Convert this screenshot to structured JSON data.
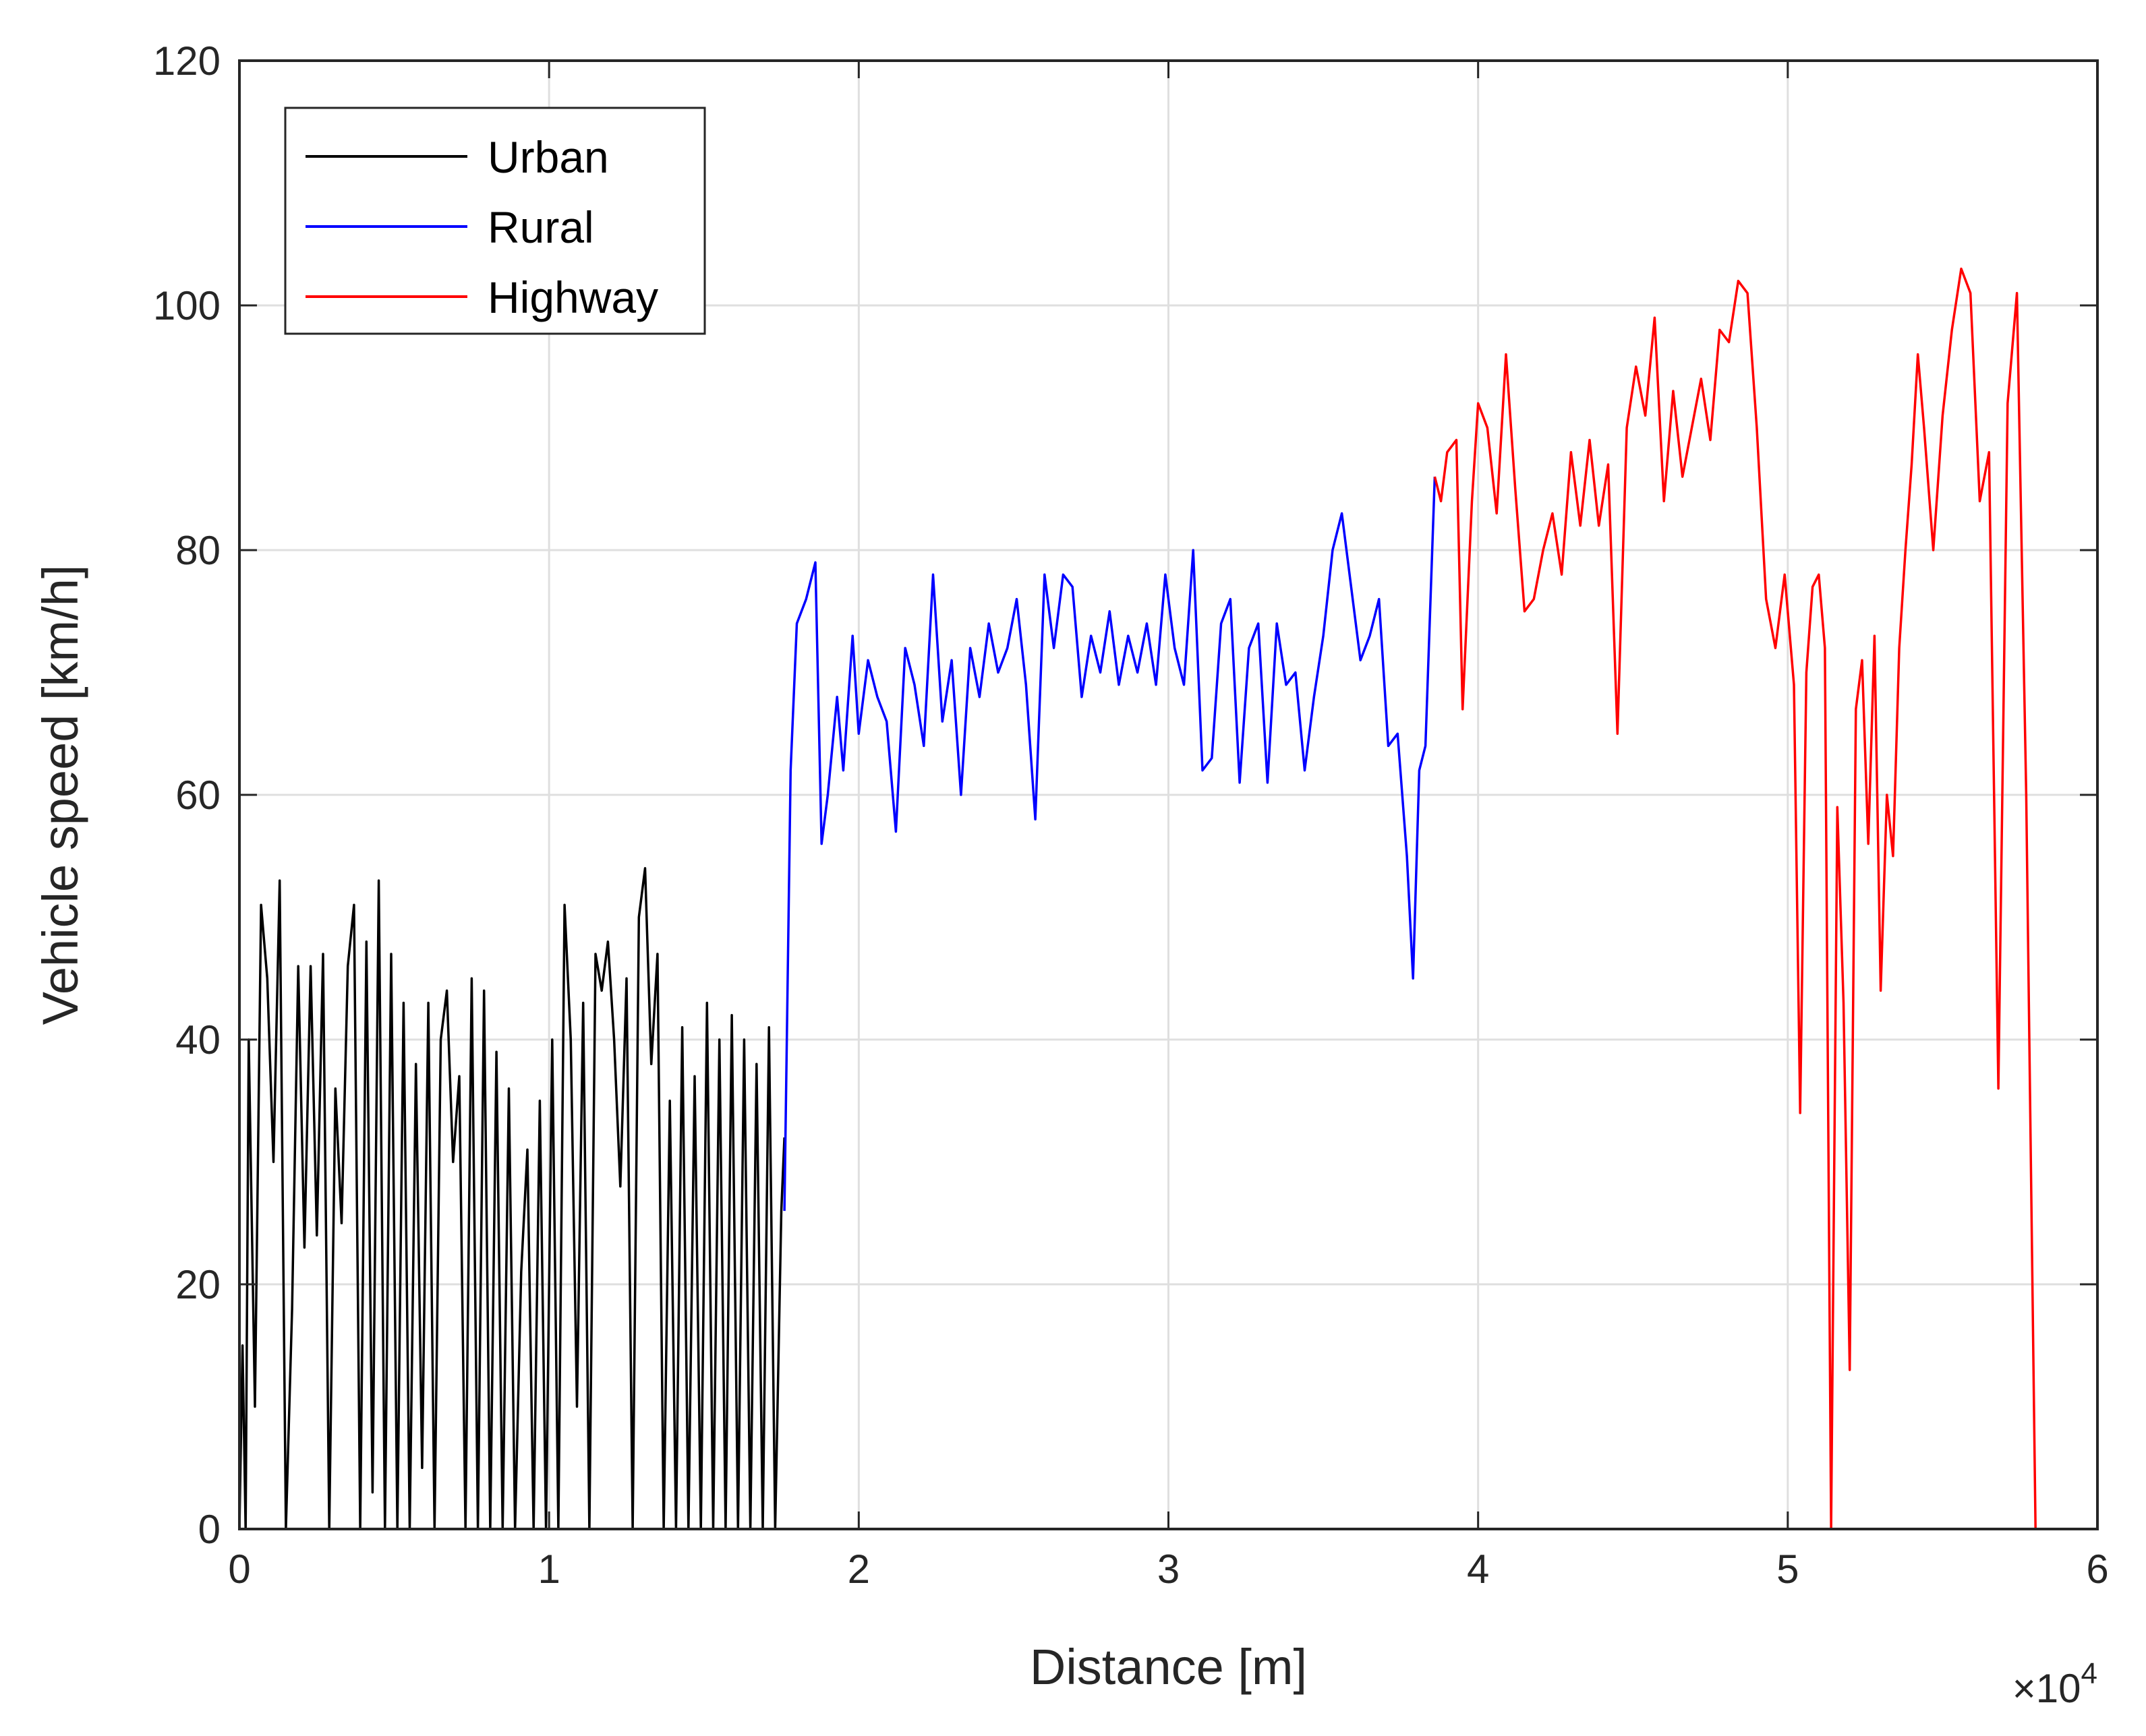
{
  "chart_data": {
    "type": "line",
    "title": "",
    "xlabel": "Distance [m]",
    "ylabel": "Vehicle speed [km/h]",
    "x_multiplier": {
      "prefix": "×10",
      "exponent": "4"
    },
    "xlim": [
      0,
      6
    ],
    "ylim": [
      0,
      120
    ],
    "x_ticks": [
      "0",
      "1",
      "2",
      "3",
      "4",
      "5",
      "6"
    ],
    "y_ticks": [
      "0",
      "20",
      "40",
      "60",
      "80",
      "100",
      "120"
    ],
    "grid": true,
    "legend": {
      "position": "top-left"
    },
    "series": [
      {
        "name": "Urban",
        "color": "#000000",
        "x": [
          0.0,
          0.01,
          0.02,
          0.03,
          0.05,
          0.07,
          0.09,
          0.11,
          0.13,
          0.15,
          0.17,
          0.19,
          0.21,
          0.23,
          0.25,
          0.27,
          0.29,
          0.31,
          0.33,
          0.35,
          0.37,
          0.39,
          0.41,
          0.43,
          0.45,
          0.47,
          0.49,
          0.51,
          0.53,
          0.55,
          0.57,
          0.59,
          0.61,
          0.63,
          0.65,
          0.67,
          0.69,
          0.71,
          0.73,
          0.75,
          0.77,
          0.79,
          0.81,
          0.83,
          0.85,
          0.87,
          0.89,
          0.91,
          0.93,
          0.95,
          0.97,
          0.99,
          1.01,
          1.03,
          1.05,
          1.07,
          1.09,
          1.11,
          1.13,
          1.15,
          1.17,
          1.19,
          1.21,
          1.23,
          1.25,
          1.27,
          1.29,
          1.31,
          1.33,
          1.35,
          1.37,
          1.39,
          1.41,
          1.43,
          1.45,
          1.47,
          1.49,
          1.51,
          1.53,
          1.55,
          1.57,
          1.59,
          1.61,
          1.63,
          1.65,
          1.67,
          1.69,
          1.71,
          1.73,
          1.75,
          1.76
        ],
        "y": [
          0,
          15,
          0,
          40,
          10,
          51,
          45,
          30,
          53,
          0,
          18,
          46,
          23,
          46,
          24,
          47,
          0,
          36,
          25,
          46,
          51,
          0,
          48,
          3,
          53,
          0,
          47,
          0,
          43,
          0,
          38,
          5,
          43,
          0,
          40,
          44,
          30,
          37,
          0,
          45,
          0,
          44,
          0,
          39,
          0,
          36,
          0,
          21,
          31,
          0,
          35,
          0,
          40,
          0,
          51,
          40,
          10,
          43,
          0,
          47,
          44,
          48,
          40,
          28,
          45,
          0,
          50,
          54,
          38,
          47,
          0,
          35,
          0,
          41,
          0,
          37,
          0,
          43,
          0,
          40,
          0,
          42,
          0,
          40,
          0,
          38,
          0,
          41,
          0,
          26,
          32
        ]
      },
      {
        "name": "Rural",
        "color": "#0000ff",
        "x": [
          1.76,
          1.78,
          1.8,
          1.83,
          1.86,
          1.88,
          1.9,
          1.93,
          1.95,
          1.98,
          2.0,
          2.03,
          2.06,
          2.09,
          2.12,
          2.15,
          2.18,
          2.21,
          2.24,
          2.27,
          2.3,
          2.33,
          2.36,
          2.39,
          2.42,
          2.45,
          2.48,
          2.51,
          2.54,
          2.57,
          2.6,
          2.63,
          2.66,
          2.69,
          2.72,
          2.75,
          2.78,
          2.81,
          2.84,
          2.87,
          2.9,
          2.93,
          2.96,
          2.99,
          3.02,
          3.05,
          3.08,
          3.11,
          3.14,
          3.17,
          3.2,
          3.23,
          3.26,
          3.29,
          3.32,
          3.35,
          3.38,
          3.41,
          3.44,
          3.47,
          3.5,
          3.53,
          3.56,
          3.59,
          3.62,
          3.65,
          3.68,
          3.71,
          3.74,
          3.77,
          3.79,
          3.81,
          3.83,
          3.86
        ],
        "y": [
          26,
          62,
          74,
          76,
          79,
          56,
          60,
          68,
          62,
          73,
          65,
          71,
          68,
          66,
          57,
          72,
          69,
          64,
          78,
          66,
          71,
          60,
          72,
          68,
          74,
          70,
          72,
          76,
          69,
          58,
          78,
          72,
          78,
          77,
          68,
          73,
          70,
          75,
          69,
          73,
          70,
          74,
          69,
          78,
          72,
          69,
          80,
          62,
          63,
          74,
          76,
          61,
          72,
          74,
          61,
          74,
          69,
          70,
          62,
          68,
          73,
          80,
          83,
          77,
          71,
          73,
          76,
          64,
          65,
          55,
          45,
          62,
          64,
          86
        ]
      },
      {
        "name": "Highway",
        "color": "#ff0000",
        "x": [
          3.86,
          3.88,
          3.9,
          3.93,
          3.95,
          3.98,
          4.0,
          4.03,
          4.06,
          4.09,
          4.12,
          4.15,
          4.18,
          4.21,
          4.24,
          4.27,
          4.3,
          4.33,
          4.36,
          4.39,
          4.42,
          4.45,
          4.48,
          4.51,
          4.54,
          4.57,
          4.6,
          4.63,
          4.66,
          4.69,
          4.72,
          4.75,
          4.78,
          4.81,
          4.84,
          4.87,
          4.9,
          4.93,
          4.96,
          4.99,
          5.02,
          5.04,
          5.06,
          5.08,
          5.1,
          5.12,
          5.14,
          5.16,
          5.18,
          5.2,
          5.22,
          5.24,
          5.26,
          5.28,
          5.3,
          5.32,
          5.34,
          5.36,
          5.38,
          5.4,
          5.42,
          5.44,
          5.47,
          5.5,
          5.53,
          5.56,
          5.59,
          5.62,
          5.65,
          5.68,
          5.71,
          5.74,
          5.77,
          5.8,
          5.83,
          5.86,
          5.88,
          5.9,
          5.91
        ],
        "y": [
          86,
          84,
          88,
          89,
          67,
          84,
          92,
          90,
          83,
          96,
          85,
          75,
          76,
          80,
          83,
          78,
          88,
          82,
          89,
          82,
          87,
          65,
          90,
          95,
          91,
          99,
          84,
          93,
          86,
          90,
          94,
          89,
          98,
          97,
          102,
          101,
          90,
          76,
          72,
          78,
          69,
          34,
          70,
          77,
          78,
          72,
          0,
          59,
          43,
          13,
          67,
          71,
          56,
          73,
          44,
          60,
          55,
          72,
          80,
          87,
          96,
          90,
          80,
          91,
          98,
          103,
          101,
          84,
          88,
          36,
          92,
          101,
          60,
          0,
          0,
          0,
          0,
          0,
          0
        ]
      }
    ]
  }
}
